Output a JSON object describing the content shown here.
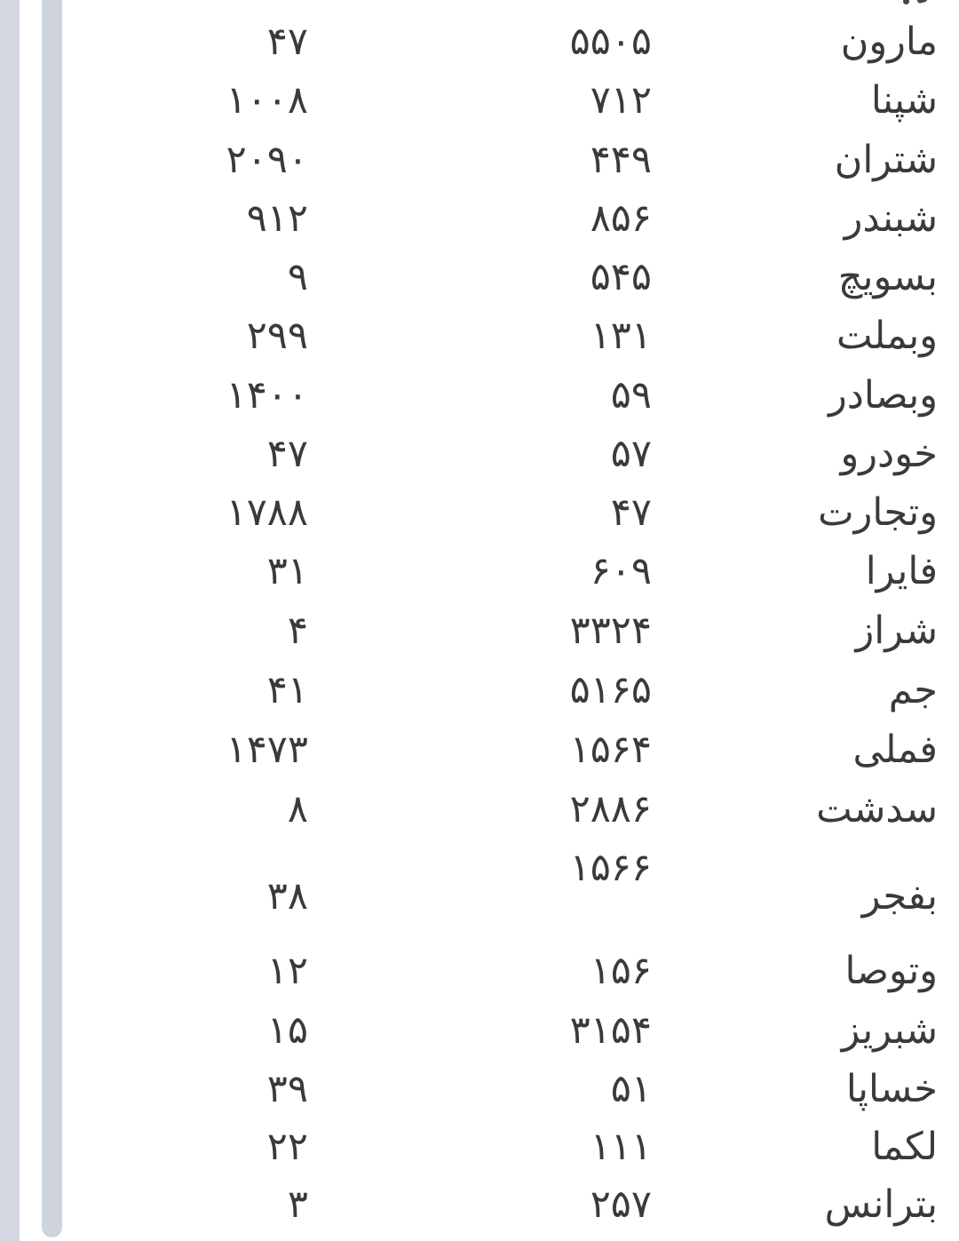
{
  "page": {
    "background": "#ffffff",
    "text_color": "#3a3a3d",
    "side_track_color": "#d2d7e0",
    "scroll_thumb_color": "#ced4dd"
  },
  "table": {
    "direction": "rtl",
    "rows": [
      {
        "name": "مارون",
        "mid": "۵۵۰۵",
        "left": "۴۷"
      },
      {
        "name": "شپنا",
        "mid": "۷۱۲",
        "left": "۱۰۰۸"
      },
      {
        "name": "شتران",
        "mid": "۴۴۹",
        "left": "۲۰۹۰"
      },
      {
        "name": "شبندر",
        "mid": "۸۵۶",
        "left": "۹۱۲"
      },
      {
        "name": "بسویچ",
        "mid": "۵۴۵",
        "left": "۹"
      },
      {
        "name": "وبملت",
        "mid": "۱۳۱",
        "left": "۲۹۹"
      },
      {
        "name": "وبصادر",
        "mid": "۵۹",
        "left": "۱۴۰۰"
      },
      {
        "name": "خودرو",
        "mid": "۵۷",
        "left": "۴۷"
      },
      {
        "name": "وتجارت",
        "mid": "۴۷",
        "left": "۱۷۸۸"
      },
      {
        "name": "فایرا",
        "mid": "۶۰۹",
        "left": "۳۱"
      },
      {
        "name": "شراز",
        "mid": "۳۳۲۴",
        "left": "۴"
      },
      {
        "name": "جم",
        "mid": "۵۱۶۵",
        "left": "۴۱"
      },
      {
        "name": "فملی",
        "mid": "۱۵۶۴",
        "left": "۱۴۷۳"
      },
      {
        "name": "سدشت",
        "mid": "۲۸۸۶",
        "left": "۸"
      },
      {
        "name": "بفجر",
        "mid": "۱۵۶۶",
        "left": "۳۸"
      },
      {
        "name": "وتوصا",
        "mid": "۱۵۶",
        "left": "۱۲"
      },
      {
        "name": "شبریز",
        "mid": "۳۱۵۴",
        "left": "۱۵"
      },
      {
        "name": "خساپا",
        "mid": "۵۱",
        "left": "۳۹"
      },
      {
        "name": "لکما",
        "mid": "۱۱۱",
        "left": "۲۲"
      },
      {
        "name": "بترانس",
        "mid": "۲۵۷",
        "left": "۳"
      }
    ]
  }
}
